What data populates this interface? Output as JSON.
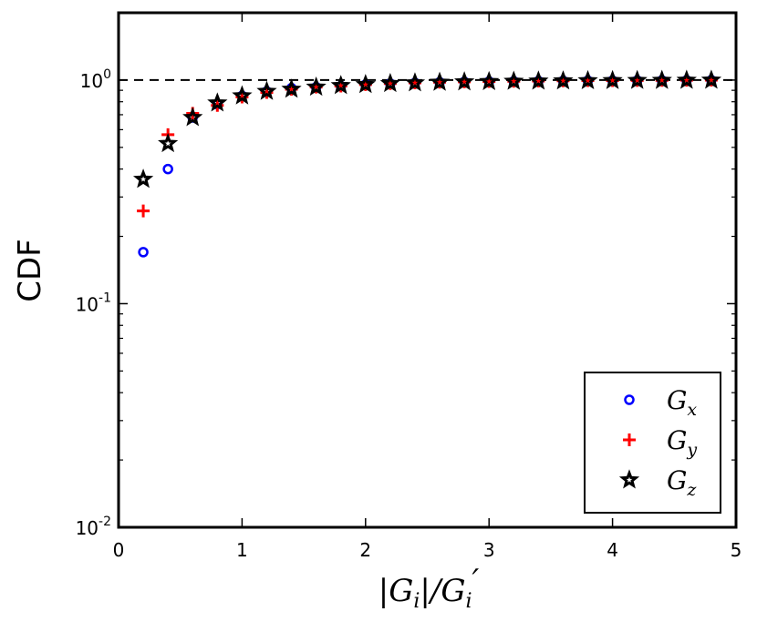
{
  "chart_data": {
    "type": "scatter",
    "title": "",
    "xlabel": "|G_i|/G_i'",
    "xlabel_parts": {
      "bar_open": "|",
      "g": "G",
      "i": "i",
      "bar_close": "|/",
      "g2": "G",
      "i2": "i",
      "prime": "′"
    },
    "ylabel": "CDF",
    "xlim": [
      0,
      5
    ],
    "ylim": [
      0.01,
      2
    ],
    "yscale": "log",
    "x_ticks": [
      "0",
      "1",
      "2",
      "3",
      "4",
      "5"
    ],
    "y_ticks": [
      {
        "value": 0.01,
        "base": "10",
        "exp": "-2"
      },
      {
        "value": 0.1,
        "base": "10",
        "exp": "-1"
      },
      {
        "value": 1,
        "base": "10",
        "exp": "0"
      }
    ],
    "reference_line": {
      "y": 1,
      "style": "dashed"
    },
    "legend_position": "lower-right",
    "x": [
      0.2,
      0.4,
      0.6,
      0.8,
      1.0,
      1.2,
      1.4,
      1.6,
      1.8,
      2.0,
      2.2,
      2.4,
      2.6,
      2.8,
      3.0,
      3.2,
      3.4,
      3.6,
      3.8,
      4.0,
      4.2,
      4.4,
      4.6,
      4.8
    ],
    "series": [
      {
        "name": "G_x",
        "label_base": "G",
        "label_sub": "x",
        "marker": "circle",
        "color": "#0000ff",
        "values": [
          0.17,
          0.4,
          0.68,
          0.78,
          0.85,
          0.89,
          0.92,
          0.93,
          0.94,
          0.955,
          0.965,
          0.972,
          0.978,
          0.982,
          0.985,
          0.988,
          0.99,
          0.992,
          0.994,
          0.995,
          0.996,
          0.997,
          0.998,
          0.999
        ]
      },
      {
        "name": "G_y",
        "label_base": "G",
        "label_sub": "y",
        "marker": "plus",
        "color": "#ff0000",
        "values": [
          0.26,
          0.57,
          0.71,
          0.77,
          0.84,
          0.88,
          0.91,
          0.93,
          0.94,
          0.955,
          0.965,
          0.972,
          0.978,
          0.982,
          0.985,
          0.988,
          0.99,
          0.992,
          0.994,
          0.995,
          0.996,
          0.997,
          0.998,
          0.999
        ]
      },
      {
        "name": "G_z",
        "label_base": "G",
        "label_sub": "z",
        "marker": "star",
        "color": "#000000",
        "values": [
          0.36,
          0.52,
          0.68,
          0.79,
          0.85,
          0.89,
          0.91,
          0.93,
          0.945,
          0.955,
          0.965,
          0.972,
          0.978,
          0.982,
          0.985,
          0.988,
          0.99,
          0.992,
          0.994,
          0.995,
          0.996,
          0.997,
          0.998,
          0.999
        ]
      }
    ]
  }
}
